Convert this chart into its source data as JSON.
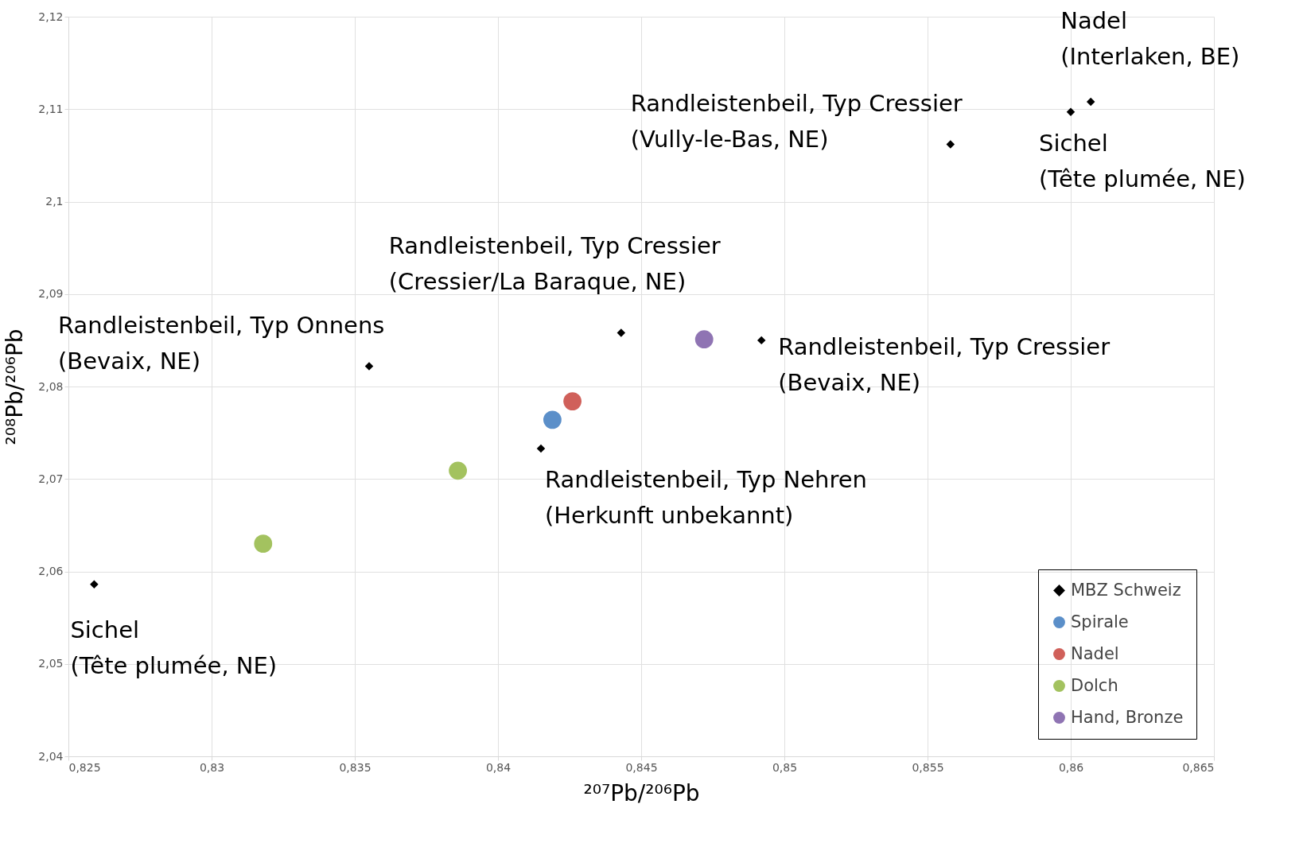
{
  "chart_data": {
    "type": "scatter",
    "xlabel": "²⁰⁷Pb/²⁰⁶Pb",
    "ylabel": "²⁰⁸Pb/²⁰⁶Pb",
    "xlim": [
      0.825,
      0.865
    ],
    "ylim": [
      2.04,
      2.12
    ],
    "xticks": [
      {
        "value": 0.825,
        "label": "0,825"
      },
      {
        "value": 0.83,
        "label": "0,83"
      },
      {
        "value": 0.835,
        "label": "0,835"
      },
      {
        "value": 0.84,
        "label": "0,84"
      },
      {
        "value": 0.845,
        "label": "0,845"
      },
      {
        "value": 0.85,
        "label": "0,85"
      },
      {
        "value": 0.855,
        "label": "0,855"
      },
      {
        "value": 0.86,
        "label": "0,86"
      },
      {
        "value": 0.865,
        "label": "0,865"
      }
    ],
    "yticks": [
      {
        "value": 2.04,
        "label": "2,04"
      },
      {
        "value": 2.05,
        "label": "2,05"
      },
      {
        "value": 2.06,
        "label": "2,06"
      },
      {
        "value": 2.07,
        "label": "2,07"
      },
      {
        "value": 2.08,
        "label": "2,08"
      },
      {
        "value": 2.09,
        "label": "2,09"
      },
      {
        "value": 2.1,
        "label": "2,1"
      },
      {
        "value": 2.11,
        "label": "2,11"
      },
      {
        "value": 2.12,
        "label": "2,12"
      }
    ],
    "grid": true,
    "legend": "bottom right",
    "series": [
      {
        "name": "MBZ Schweiz",
        "color": "#000000",
        "marker": "diamond",
        "x": [
          0.8259,
          0.8355,
          0.8415,
          0.8443,
          0.8492,
          0.8558,
          0.86,
          0.8607
        ],
        "values": [
          2.0586,
          2.0822,
          2.0733,
          2.0858,
          2.085,
          2.1062,
          2.1097,
          2.1108
        ]
      },
      {
        "name": "Spirale",
        "color": "#5b8fc9",
        "marker": "circle",
        "x": [
          0.8419
        ],
        "values": [
          2.0764
        ]
      },
      {
        "name": "Nadel",
        "color": "#d0605a",
        "marker": "circle",
        "x": [
          0.8426
        ],
        "values": [
          2.0784
        ]
      },
      {
        "name": "Dolch",
        "color": "#a3c25f",
        "marker": "circle",
        "x": [
          0.8386,
          0.8318
        ],
        "values": [
          2.0709,
          2.063
        ]
      },
      {
        "name": "Hand, Bronze",
        "color": "#8f74b3",
        "marker": "circle",
        "x": [
          0.8472
        ],
        "values": [
          2.0851
        ]
      }
    ],
    "annotations": [
      {
        "text": "Sichel\n(Tête plumée, NE)",
        "x": 0.8259,
        "y": 2.0586
      },
      {
        "text": "Randleistenbeil, Typ Onnens\n(Bevaix, NE)",
        "x": 0.8355,
        "y": 2.0822
      },
      {
        "text": "Randleistenbeil, Typ Nehren\n(Herkunft unbekannt)",
        "x": 0.8415,
        "y": 2.0733
      },
      {
        "text": "Randleistenbeil, Typ Cressier\n(Cressier/La Baraque, NE)",
        "x": 0.8443,
        "y": 2.0858
      },
      {
        "text": "Randleistenbeil, Typ Cressier\n(Bevaix, NE)",
        "x": 0.8492,
        "y": 2.085
      },
      {
        "text": "Randleistenbeil, Typ Cressier\n(Vully-le-Bas, NE)",
        "x": 0.8558,
        "y": 2.1062
      },
      {
        "text": "Sichel\n(Tête plumée, NE)",
        "x": 0.86,
        "y": 2.1097
      },
      {
        "text": "Nadel\n(Interlaken, BE)",
        "x": 0.8607,
        "y": 2.1108
      }
    ]
  }
}
